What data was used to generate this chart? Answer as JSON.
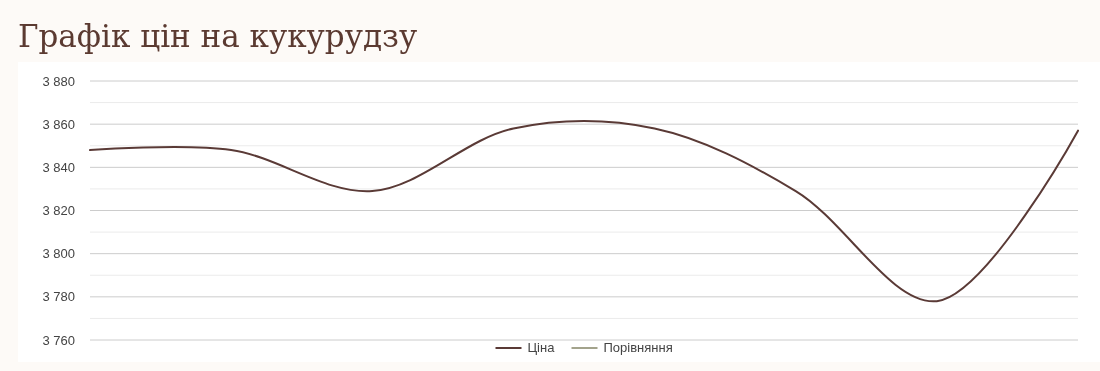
{
  "chart_data": {
    "type": "line",
    "title": "Графік цін на кукурудзу",
    "categories": [
      null,
      null,
      null,
      null,
      null,
      null,
      null,
      null
    ],
    "series": [
      {
        "name": "Ціна",
        "color": "#5a3a36",
        "values": [
          3848,
          3848,
          3829,
          3858,
          3858,
          3829,
          3778,
          3857
        ]
      },
      {
        "name": "Порівняння",
        "color": "#a3a38c",
        "values": [
          null,
          null,
          null,
          null,
          null,
          null,
          null,
          null
        ]
      }
    ],
    "ylim": [
      3760,
      3880
    ],
    "yticks": [
      {
        "value": 3760,
        "label": "3 760"
      },
      {
        "value": 3770,
        "label": null
      },
      {
        "value": 3780,
        "label": "3 780"
      },
      {
        "value": 3790,
        "label": null
      },
      {
        "value": 3800,
        "label": "3 800"
      },
      {
        "value": 3810,
        "label": null
      },
      {
        "value": 3820,
        "label": "3 820"
      },
      {
        "value": 3830,
        "label": null
      },
      {
        "value": 3840,
        "label": "3 840"
      },
      {
        "value": 3850,
        "label": null
      },
      {
        "value": 3860,
        "label": "3 860"
      },
      {
        "value": 3870,
        "label": null
      },
      {
        "value": 3880,
        "label": "3 880"
      }
    ],
    "grid": true,
    "legend": "bottom",
    "tick_labels": "y",
    "marker": "none",
    "line_style": "solid"
  }
}
